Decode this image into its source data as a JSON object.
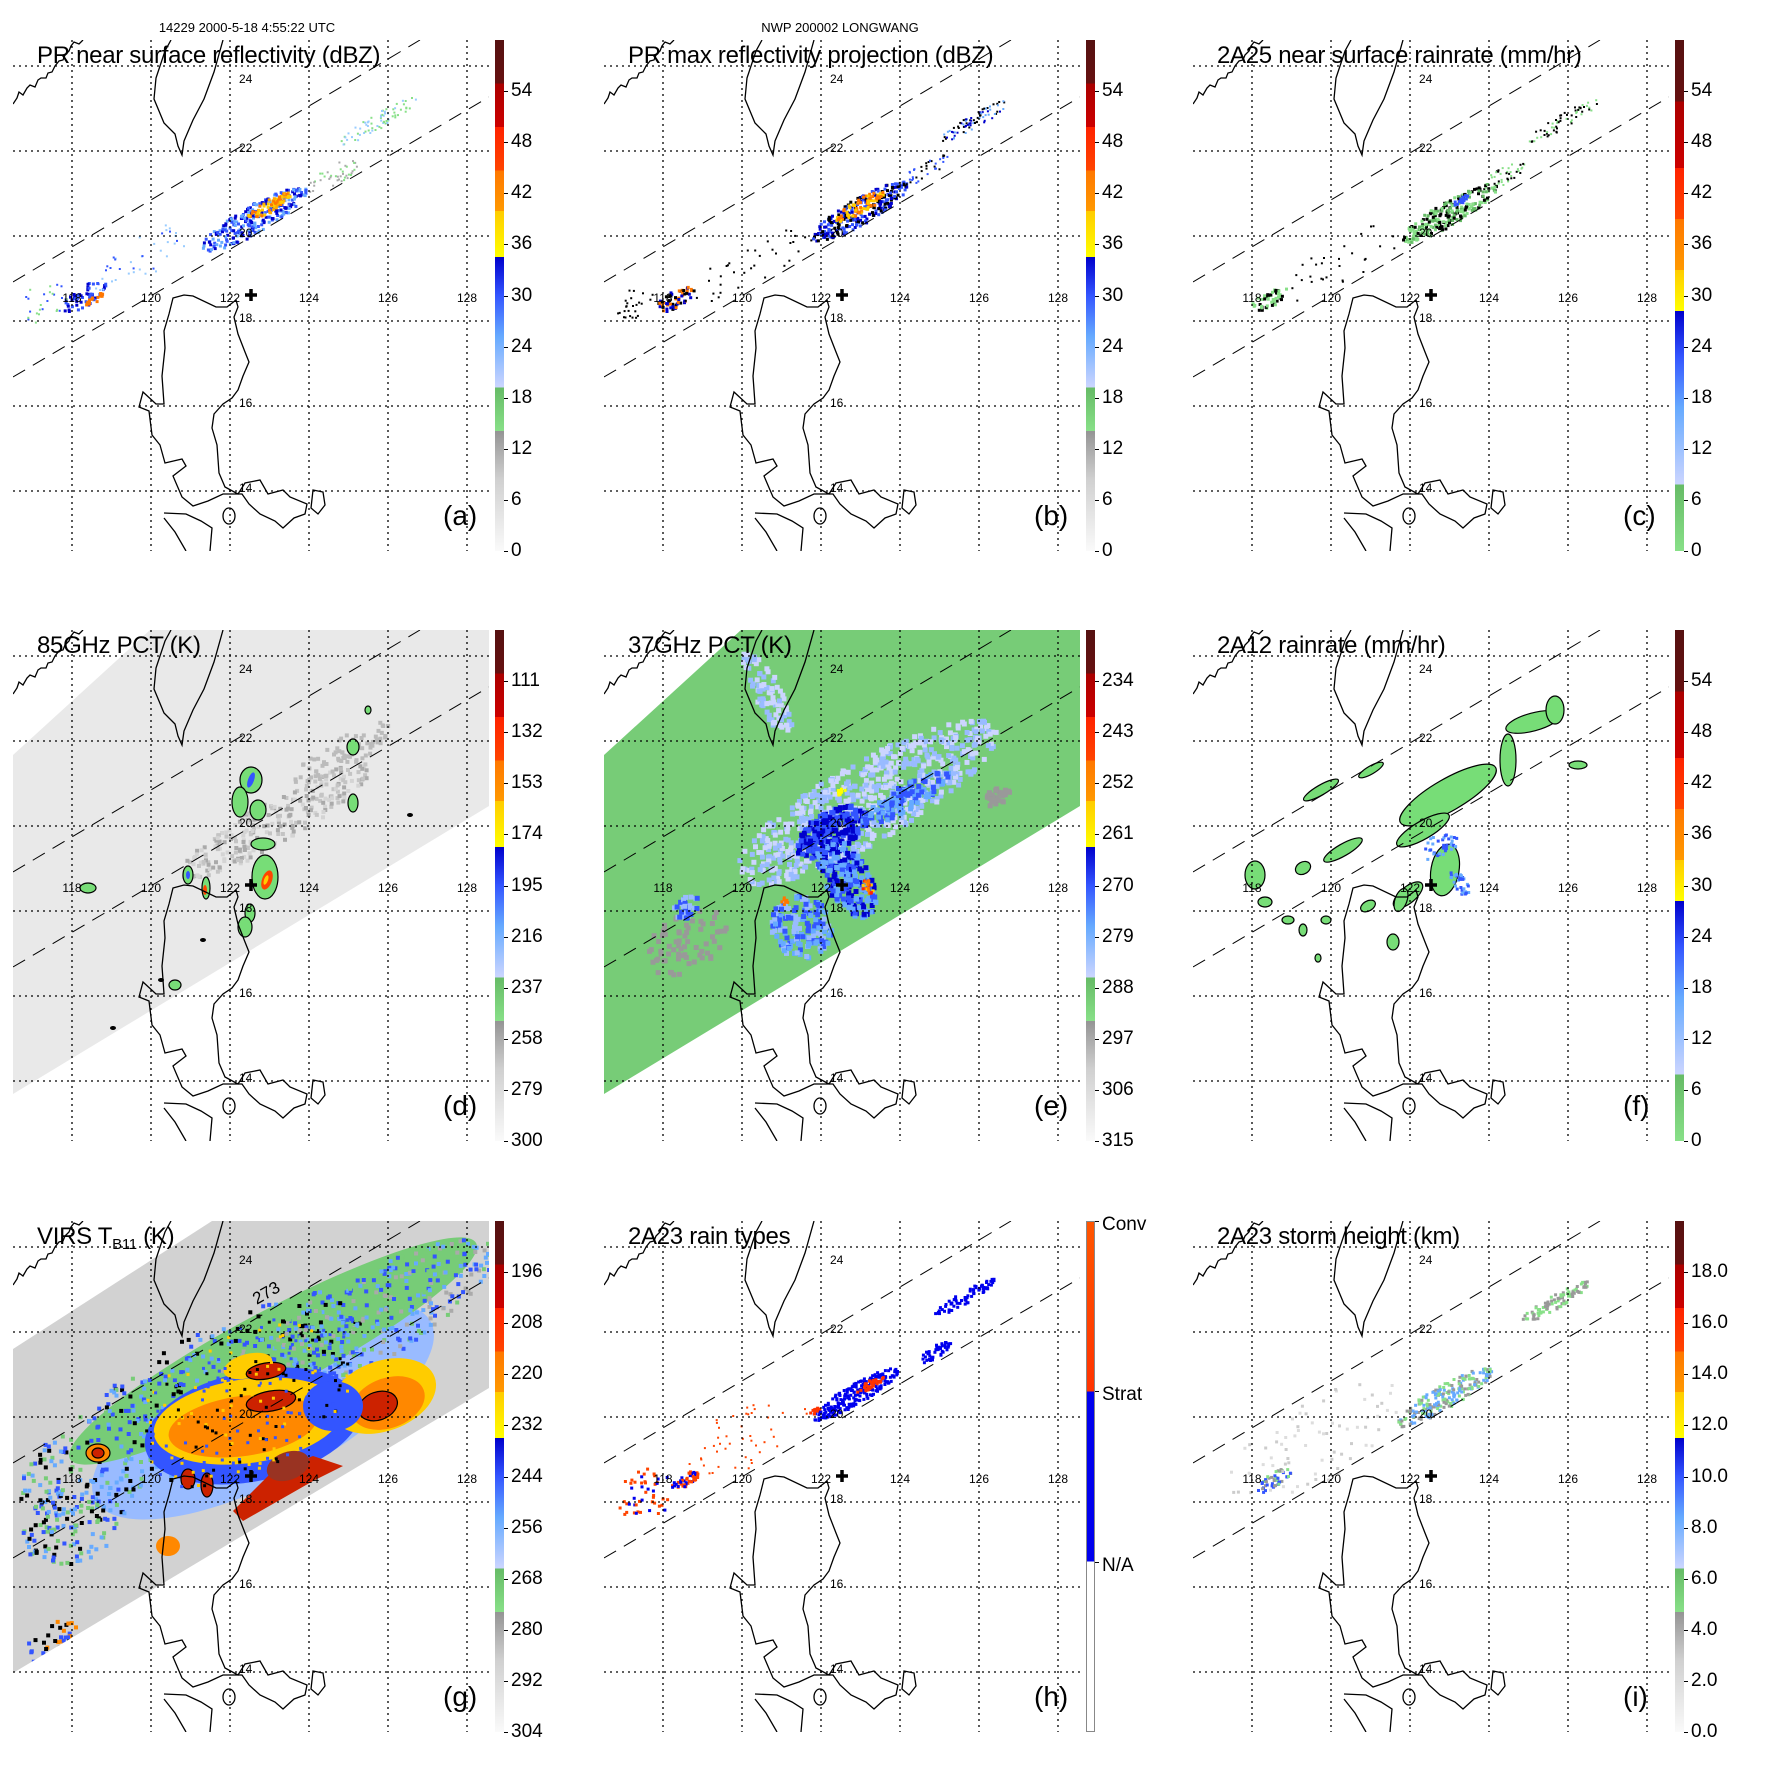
{
  "header": {
    "orbit_time": "14229 2000-5-18 4:55:22 UTC",
    "storm": "NWP 200002 LONGWANG"
  },
  "map": {
    "lon_labels": [
      "118",
      "120",
      "122",
      "124",
      "126",
      "128"
    ],
    "lat_labels": [
      "24",
      "22",
      "20",
      "18",
      "16",
      "14"
    ]
  },
  "panels": [
    {
      "id": "a",
      "title": "PR near surface reflectivity (dBZ)",
      "label": "(a)",
      "colorbar": {
        "style": "std",
        "labels": [
          "54",
          "48",
          "42",
          "36",
          "30",
          "24",
          "18",
          "12",
          "6",
          "0"
        ]
      }
    },
    {
      "id": "b",
      "title": "PR max reflectivity projection (dBZ)",
      "label": "(b)",
      "colorbar": {
        "style": "std",
        "labels": [
          "54",
          "48",
          "42",
          "36",
          "30",
          "24",
          "18",
          "12",
          "6",
          "0"
        ]
      }
    },
    {
      "id": "c",
      "title": "2A25 near surface rainrate (mm/hr)",
      "label": "(c)",
      "colorbar": {
        "style": "rain",
        "labels": [
          "54",
          "48",
          "42",
          "36",
          "30",
          "24",
          "18",
          "12",
          "6",
          "0"
        ]
      }
    },
    {
      "id": "d",
      "title": "85GHz PCT (K)",
      "label": "(d)",
      "colorbar": {
        "style": "std",
        "labels": [
          "111",
          "132",
          "153",
          "174",
          "195",
          "216",
          "237",
          "258",
          "279",
          "300"
        ]
      }
    },
    {
      "id": "e",
      "title": "37GHz PCT (K)",
      "label": "(e)",
      "colorbar": {
        "style": "std",
        "labels": [
          "234",
          "243",
          "252",
          "261",
          "270",
          "279",
          "288",
          "297",
          "306",
          "315"
        ]
      }
    },
    {
      "id": "f",
      "title": "2A12 rainrate (mm/hr)",
      "label": "(f)",
      "colorbar": {
        "style": "rain",
        "labels": [
          "54",
          "48",
          "42",
          "36",
          "30",
          "24",
          "18",
          "12",
          "6",
          "0"
        ]
      }
    },
    {
      "id": "g",
      "title": "VIRS T",
      "title_sub": "B11",
      "title_post": " (K)",
      "contour_label": "273",
      "label": "(g)",
      "colorbar": {
        "style": "std",
        "labels": [
          "196",
          "208",
          "220",
          "232",
          "244",
          "256",
          "268",
          "280",
          "292",
          "304"
        ]
      }
    },
    {
      "id": "h",
      "title": "2A23 rain types",
      "label": "(h)",
      "colorbar": {
        "style": "type",
        "labels": [
          "Conv",
          "Strat",
          "N/A"
        ]
      }
    },
    {
      "id": "i",
      "title": "2A23 storm height (km)",
      "label": "(i)",
      "colorbar": {
        "style": "std",
        "labels": [
          "18.0",
          "16.0",
          "14.0",
          "12.0",
          "10.0",
          "8.0",
          "6.0",
          "4.0",
          "2.0",
          "0.0"
        ]
      }
    }
  ],
  "colors": {
    "land_outline": "#000000",
    "convective": "#ff3300",
    "stratiform": "#0000ee"
  }
}
